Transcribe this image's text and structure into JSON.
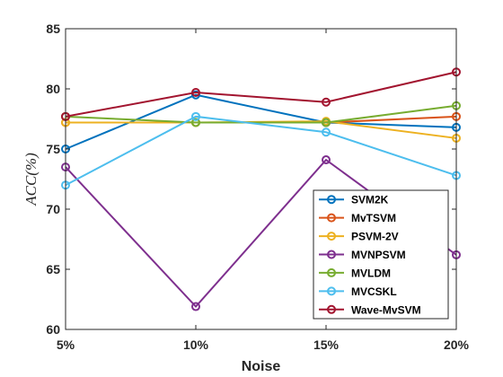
{
  "chart_data": {
    "type": "line",
    "title": "",
    "xlabel": "Noise",
    "ylabel": "ACC(%)",
    "categories": [
      "5%",
      "10%",
      "15%",
      "20%"
    ],
    "ylim": [
      60,
      85
    ],
    "yticks": [
      60,
      65,
      70,
      75,
      80,
      85
    ],
    "grid": false,
    "legend_position": "bottom-right",
    "series": [
      {
        "name": "SVM2K",
        "color": "#0072BD",
        "values": [
          75.0,
          79.5,
          77.2,
          76.8
        ]
      },
      {
        "name": "MvTSVM",
        "color": "#D95319",
        "values": [
          77.2,
          77.2,
          77.2,
          77.7
        ]
      },
      {
        "name": "PSVM-2V",
        "color": "#EDB120",
        "values": [
          77.2,
          77.2,
          77.3,
          75.9
        ]
      },
      {
        "name": "MVNPSVM",
        "color": "#7E2F8E",
        "values": [
          73.5,
          61.9,
          74.1,
          66.2
        ]
      },
      {
        "name": "MVLDM",
        "color": "#77AC30",
        "values": [
          77.7,
          77.2,
          77.2,
          78.6
        ]
      },
      {
        "name": "MVCSKL",
        "color": "#4DBEEE",
        "values": [
          72.0,
          77.7,
          76.4,
          72.8
        ]
      },
      {
        "name": "Wave-MvSVM",
        "color": "#A2142F",
        "values": [
          77.7,
          79.7,
          78.9,
          81.4
        ]
      }
    ]
  }
}
